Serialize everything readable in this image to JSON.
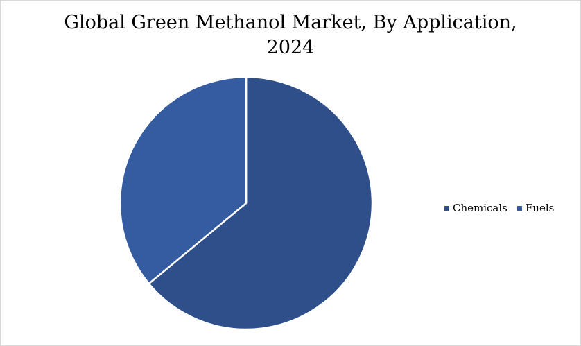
{
  "chart_data": {
    "type": "pie",
    "title_line1": "Global Green Methanol Market, By Application,",
    "title_line2": "2024",
    "categories": [
      "Chemicals",
      "Fuels"
    ],
    "values": [
      64,
      36
    ],
    "unit": "%",
    "colors": [
      "#2e4f8a",
      "#355ca0"
    ],
    "legend_position": "right",
    "start_angle_deg": 0,
    "direction": "clockwise"
  }
}
